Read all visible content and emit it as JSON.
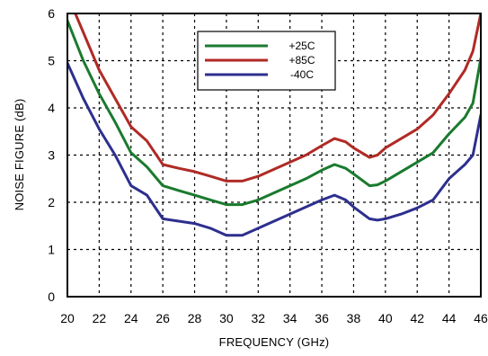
{
  "chart_data": {
    "type": "line",
    "title": "",
    "xlabel": "FREQUENCY (GHz)",
    "ylabel": "NOISE FIGURE (dB)",
    "xlim": [
      20,
      46
    ],
    "ylim": [
      0,
      6
    ],
    "x_ticks": [
      "20",
      "22",
      "24",
      "26",
      "28",
      "30",
      "32",
      "34",
      "36",
      "38",
      "40",
      "42",
      "44",
      "46"
    ],
    "y_ticks": [
      "0",
      "1",
      "2",
      "3",
      "4",
      "5",
      "6"
    ],
    "grid": true,
    "legend_position": "top-center",
    "series": [
      {
        "name": "+25C",
        "color": "#1a7a2e",
        "x": [
          20,
          21,
          22,
          23,
          24,
          25,
          26,
          27,
          28,
          29,
          30,
          31,
          32,
          33,
          34,
          35,
          36,
          36.8,
          37.5,
          38,
          39,
          39.5,
          40,
          41,
          42,
          43,
          44,
          45,
          45.5,
          46
        ],
        "y": [
          5.85,
          5.0,
          4.3,
          3.7,
          3.05,
          2.75,
          2.35,
          2.25,
          2.15,
          2.05,
          1.95,
          1.95,
          2.05,
          2.2,
          2.35,
          2.5,
          2.68,
          2.8,
          2.72,
          2.6,
          2.35,
          2.37,
          2.45,
          2.65,
          2.85,
          3.05,
          3.45,
          3.8,
          4.1,
          5.05
        ]
      },
      {
        "name": "+85C",
        "color": "#b02a25",
        "x": [
          20.5,
          21,
          22,
          23,
          24,
          25,
          26,
          27,
          28,
          29,
          30,
          31,
          32,
          33,
          34,
          35,
          36,
          36.8,
          37.5,
          38,
          39,
          39.5,
          40,
          41,
          42,
          43,
          44,
          45,
          45.5,
          46
        ],
        "y": [
          6.0,
          5.6,
          4.8,
          4.2,
          3.6,
          3.3,
          2.8,
          2.72,
          2.65,
          2.55,
          2.45,
          2.45,
          2.55,
          2.7,
          2.85,
          3.0,
          3.2,
          3.35,
          3.28,
          3.15,
          2.95,
          3.0,
          3.15,
          3.35,
          3.55,
          3.85,
          4.3,
          4.8,
          5.2,
          6.0
        ]
      },
      {
        "name": "-40C",
        "color": "#2d2f8e",
        "x": [
          20,
          21,
          22,
          23,
          24,
          25,
          26,
          27,
          28,
          29,
          30,
          31,
          32,
          33,
          34,
          35,
          36,
          36.8,
          37.5,
          38,
          39,
          39.5,
          40,
          41,
          42,
          43,
          44,
          45,
          45.5,
          46
        ],
        "y": [
          4.95,
          4.2,
          3.55,
          3.0,
          2.35,
          2.15,
          1.65,
          1.6,
          1.55,
          1.45,
          1.3,
          1.3,
          1.45,
          1.6,
          1.75,
          1.9,
          2.05,
          2.15,
          2.05,
          1.9,
          1.65,
          1.62,
          1.65,
          1.75,
          1.88,
          2.05,
          2.5,
          2.8,
          3.0,
          3.85
        ]
      }
    ]
  }
}
